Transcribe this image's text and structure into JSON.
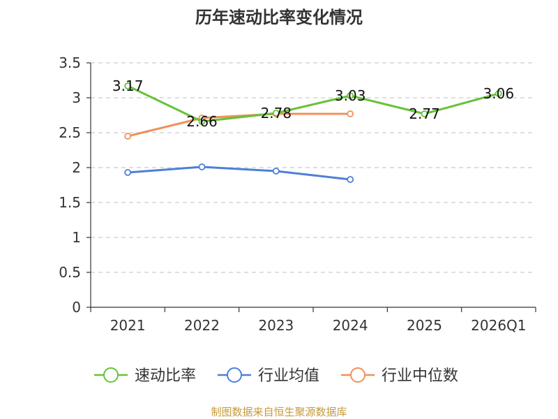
{
  "chart_data": {
    "type": "line",
    "title": "历年速动比率变化情况",
    "categories": [
      "2021",
      "2022",
      "2023",
      "2024",
      "2025",
      "2026Q1"
    ],
    "ylim": [
      0,
      3.5
    ],
    "yticks": [
      "0",
      "0.5",
      "1",
      "1.5",
      "2",
      "2.5",
      "3",
      "3.5"
    ],
    "ytick_values": [
      0,
      0.5,
      1,
      1.5,
      2,
      2.5,
      3,
      3.5
    ],
    "grid": true,
    "legend_position": "bottom",
    "series": [
      {
        "name": "速动比率",
        "color": "#67c23a",
        "values": [
          3.17,
          2.66,
          2.78,
          3.03,
          2.77,
          3.06
        ],
        "labels": [
          "3.17",
          "2.66",
          "2.78",
          "3.03",
          "2.77",
          "3.06"
        ]
      },
      {
        "name": "行业均值",
        "color": "#4e7fd8",
        "values": [
          1.93,
          2.01,
          1.95,
          1.83,
          null,
          null
        ]
      },
      {
        "name": "行业中位数",
        "color": "#f0905a",
        "values": [
          2.45,
          2.71,
          2.77,
          2.77,
          null,
          null
        ]
      }
    ],
    "source": "制图数据来自恒生聚源数据库",
    "source_color": "#c69a3c"
  }
}
